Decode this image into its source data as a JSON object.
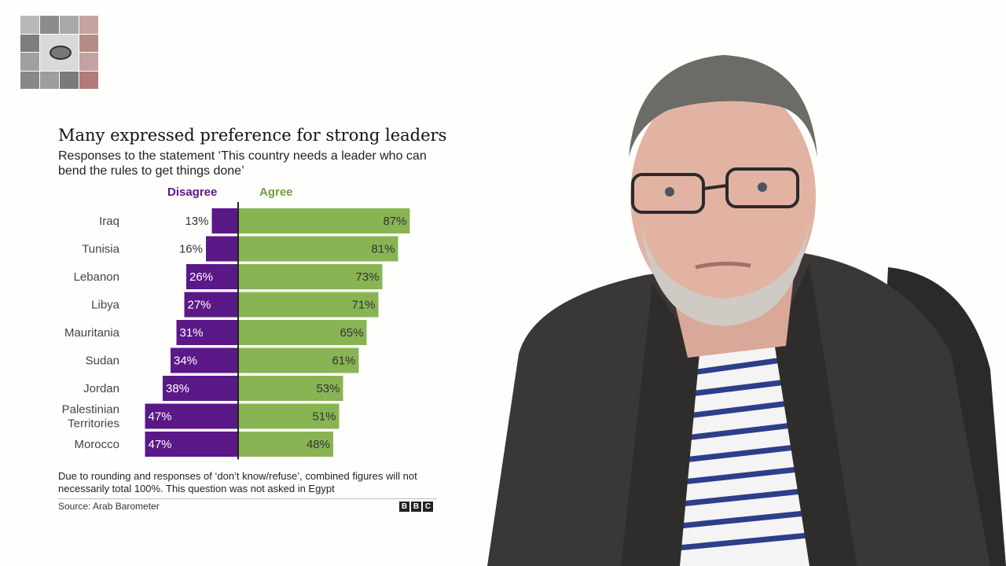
{
  "chart_data": {
    "type": "bar",
    "title": "Many expressed preference for strong leaders",
    "subtitle": "Responses to the statement ‘This country needs a leader who can bend the rules to get things done’",
    "categories": [
      [
        "Iraq"
      ],
      [
        "Tunisia"
      ],
      [
        "Lebanon"
      ],
      [
        "Libya"
      ],
      [
        "Mauritania"
      ],
      [
        "Sudan"
      ],
      [
        "Jordan"
      ],
      [
        "Palestinian",
        "Territories"
      ],
      [
        "Morocco"
      ]
    ],
    "series": [
      {
        "name": "Disagree",
        "color": "#5b1887",
        "values": [
          13,
          16,
          26,
          27,
          31,
          34,
          38,
          47,
          47
        ]
      },
      {
        "name": "Agree",
        "color": "#89b454",
        "values": [
          87,
          81,
          73,
          71,
          65,
          61,
          53,
          51,
          48
        ]
      }
    ],
    "value_labels": {
      "Disagree": [
        "13%",
        "16%",
        "26%",
        "27%",
        "31%",
        "34%",
        "38%",
        "47%",
        "47%"
      ],
      "Agree": [
        "87%",
        "81%",
        "73%",
        "71%",
        "65%",
        "61%",
        "53%",
        "51%",
        "48%"
      ]
    },
    "footnote": "Due to rounding and responses of ‘don’t know/refuse’, combined figures will not necessarily total 100%. This question was not asked in Egypt",
    "source": "Source: Arab Barometer",
    "legend_position": "top"
  },
  "brand": {
    "letters": [
      "B",
      "B",
      "C"
    ]
  },
  "icons": {
    "logo": "eye-mosaic-logo",
    "presenter": "presenter-video"
  }
}
